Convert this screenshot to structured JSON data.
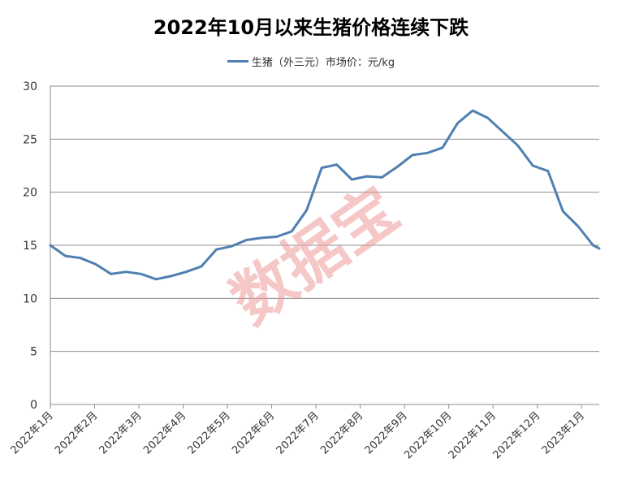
{
  "chart_data": {
    "type": "line",
    "title": "2022年10月以来生猪价格连续下跌",
    "legend_position": "top",
    "grid": true,
    "ylim": [
      0,
      30
    ],
    "yticks": [
      0,
      5,
      10,
      15,
      20,
      25,
      30
    ],
    "x_tick_labels": [
      "2022年1月",
      "2022年2月",
      "2022年3月",
      "2022年4月",
      "2022年5月",
      "2022年6月",
      "2022年7月",
      "2022年8月",
      "2022年9月",
      "2022年10月",
      "2022年11月",
      "2022年12月",
      "2023年1月"
    ],
    "xlim_months": [
      0,
      12.4
    ],
    "series": [
      {
        "name": "生猪（外三元）市场价：元/kg",
        "color": "#4e7fb0",
        "x_months": [
          0,
          0.34,
          0.68,
          1.03,
          1.37,
          1.71,
          2.05,
          2.39,
          2.73,
          3.07,
          3.41,
          3.75,
          4.09,
          4.43,
          4.77,
          5.11,
          5.45,
          5.79,
          6.13,
          6.47,
          6.81,
          7.15,
          7.49,
          7.84,
          8.18,
          8.52,
          8.86,
          9.2,
          9.54,
          9.88,
          10.22,
          10.56,
          10.9,
          11.24,
          11.58,
          11.92,
          12.26,
          12.4
        ],
        "values": [
          15.0,
          14.0,
          13.8,
          13.2,
          12.3,
          12.5,
          12.3,
          11.8,
          12.1,
          12.5,
          13.0,
          14.6,
          14.9,
          15.5,
          15.7,
          15.8,
          16.3,
          18.3,
          22.3,
          22.6,
          21.2,
          21.5,
          21.4,
          22.4,
          23.5,
          23.7,
          24.2,
          26.5,
          27.7,
          27.0,
          25.7,
          24.4,
          22.5,
          22.0,
          18.2,
          16.8,
          15.0,
          14.7
        ]
      }
    ],
    "watermark": "数据宝"
  }
}
